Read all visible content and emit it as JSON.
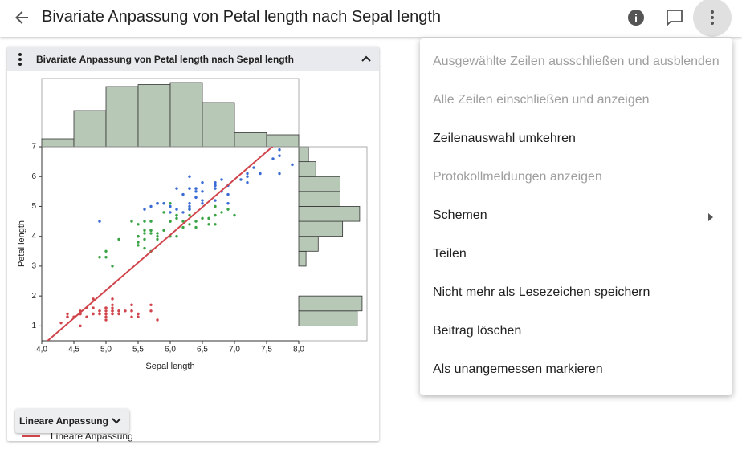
{
  "header": {
    "title": "Bivariate Anpassung von Petal length nach Sepal length"
  },
  "card": {
    "title": "Bivariate Anpassung von Petal length nach Sepal length",
    "button": "Lineare Anpassung"
  },
  "chart_data": {
    "type": "scatter",
    "xlabel": "Sepal length",
    "ylabel": "Petal length",
    "xlim": [
      4,
      8
    ],
    "ylim": [
      0.5,
      7
    ],
    "xticks": [
      {
        "value": 4,
        "label": "4,0"
      },
      {
        "value": 4.5,
        "label": "4,5"
      },
      {
        "value": 5,
        "label": "5,0"
      },
      {
        "value": 5.5,
        "label": "5,5"
      },
      {
        "value": 6,
        "label": "6,0"
      },
      {
        "value": 6.5,
        "label": "6,5"
      },
      {
        "value": 7,
        "label": "7,0"
      },
      {
        "value": 7.5,
        "label": "7,5"
      },
      {
        "value": 8,
        "label": "8,0"
      }
    ],
    "yticks": [
      1,
      2,
      3,
      4,
      5,
      6,
      7
    ],
    "series": [
      {
        "color": "#d0454c",
        "x": [
          5.1,
          4.9,
          4.7,
          4.6,
          5.0,
          5.4,
          4.6,
          5.0,
          4.4,
          4.9,
          5.4,
          4.8,
          4.8,
          4.3,
          5.8,
          5.7,
          5.4,
          5.1,
          5.7,
          5.1,
          5.4,
          5.1,
          4.6,
          5.1,
          4.8,
          5.0,
          5.0,
          5.2,
          5.2,
          4.7,
          4.8,
          5.4,
          5.2,
          5.5,
          4.9,
          5.0,
          5.5,
          4.9,
          4.4,
          5.1,
          5.0,
          4.5,
          4.4,
          5.0,
          5.1,
          4.8,
          5.1,
          4.6,
          5.3,
          5.0
        ],
        "values": [
          1.4,
          1.4,
          1.3,
          1.5,
          1.4,
          1.7,
          1.4,
          1.5,
          1.4,
          1.5,
          1.5,
          1.6,
          1.4,
          1.1,
          1.2,
          1.5,
          1.3,
          1.4,
          1.7,
          1.5,
          1.7,
          1.5,
          1.0,
          1.7,
          1.9,
          1.6,
          1.6,
          1.5,
          1.4,
          1.6,
          1.6,
          1.5,
          1.5,
          1.4,
          1.5,
          1.2,
          1.3,
          1.4,
          1.3,
          1.5,
          1.3,
          1.3,
          1.3,
          1.6,
          1.9,
          1.4,
          1.6,
          1.4,
          1.5,
          1.4
        ]
      },
      {
        "color": "#3aa445",
        "x": [
          7.0,
          6.4,
          6.9,
          5.5,
          6.5,
          5.7,
          6.3,
          4.9,
          6.6,
          5.2,
          5.0,
          5.9,
          6.0,
          6.1,
          5.6,
          6.7,
          5.6,
          5.8,
          6.2,
          5.6,
          5.9,
          6.1,
          6.3,
          6.1,
          6.4,
          6.6,
          6.8,
          6.7,
          6.0,
          5.7,
          5.5,
          5.5,
          5.8,
          6.0,
          5.4,
          6.0,
          6.7,
          6.3,
          5.6,
          5.5,
          5.5,
          6.1,
          5.8,
          5.0,
          5.6,
          5.7,
          5.7,
          6.2,
          5.1,
          5.7
        ],
        "values": [
          4.7,
          4.5,
          4.9,
          4.0,
          4.6,
          4.5,
          4.7,
          3.3,
          4.6,
          3.9,
          3.5,
          4.2,
          4.0,
          4.7,
          3.6,
          4.4,
          4.5,
          4.1,
          4.5,
          3.9,
          4.8,
          4.0,
          4.9,
          4.7,
          4.3,
          4.4,
          4.8,
          5.0,
          4.5,
          3.5,
          3.8,
          3.7,
          3.9,
          5.1,
          4.5,
          4.5,
          4.7,
          4.4,
          4.1,
          4.0,
          4.4,
          4.6,
          4.0,
          3.3,
          4.2,
          4.2,
          4.2,
          4.3,
          3.0,
          4.1
        ]
      },
      {
        "color": "#3a6bd4",
        "x": [
          6.3,
          5.8,
          7.1,
          6.3,
          6.5,
          7.6,
          4.9,
          7.3,
          6.7,
          7.2,
          6.5,
          6.4,
          6.8,
          5.7,
          5.8,
          6.4,
          6.5,
          7.7,
          7.7,
          6.0,
          6.9,
          5.6,
          7.7,
          6.3,
          6.7,
          7.2,
          6.2,
          6.1,
          6.4,
          7.2,
          7.4,
          7.9,
          6.4,
          6.3,
          6.1,
          7.7,
          6.3,
          6.4,
          6.0,
          6.9,
          6.7,
          6.9,
          5.8,
          6.8,
          6.7,
          6.7,
          6.3,
          6.5,
          6.2,
          5.9
        ],
        "values": [
          6.0,
          5.1,
          5.9,
          5.6,
          5.8,
          6.6,
          4.5,
          6.3,
          5.8,
          6.1,
          5.1,
          5.3,
          5.5,
          5.0,
          5.1,
          5.3,
          5.5,
          6.7,
          6.9,
          5.0,
          5.7,
          4.9,
          6.7,
          4.9,
          5.7,
          6.0,
          4.8,
          4.9,
          5.6,
          5.8,
          6.1,
          6.4,
          5.6,
          5.1,
          5.6,
          6.1,
          5.6,
          5.5,
          4.8,
          5.4,
          5.6,
          5.1,
          5.1,
          5.9,
          5.7,
          5.2,
          5.0,
          5.2,
          5.4,
          5.1
        ]
      }
    ],
    "fit": {
      "name": "Lineare Anpassung",
      "intercept": -7.101,
      "slope": 1.858,
      "color": "#d0454c"
    },
    "top_histogram": {
      "bins": [
        4,
        4.5,
        5,
        5.5,
        6,
        6.5,
        7,
        7.5,
        8
      ],
      "counts": [
        4,
        18,
        30,
        31,
        32,
        22,
        7,
        6
      ],
      "count_lim": [
        0,
        34
      ],
      "color": "#b7c8b7"
    },
    "right_histogram": {
      "bins": [
        1,
        1.5,
        2,
        2.5,
        3,
        3.5,
        4,
        4.5,
        5,
        5.5,
        6,
        6.5,
        7
      ],
      "counts": [
        24,
        26,
        0,
        0,
        3,
        8,
        18,
        25,
        17,
        17,
        7,
        4
      ],
      "count_lim": [
        0,
        28
      ],
      "color": "#b7c8b7"
    }
  },
  "menu": {
    "items": [
      {
        "label": "Ausgewählte Zeilen ausschließen und ausblenden",
        "disabled": true
      },
      {
        "label": "Alle Zeilen einschließen und anzeigen",
        "disabled": true
      },
      {
        "label": "Zeilenauswahl umkehren",
        "disabled": false
      },
      {
        "label": "Protokollmeldungen anzeigen",
        "disabled": true
      },
      {
        "label": "Schemen",
        "disabled": false,
        "submenu": true
      },
      {
        "label": "Teilen",
        "disabled": false
      },
      {
        "label": "Nicht mehr als Lesezeichen speichern",
        "disabled": false
      },
      {
        "label": "Beitrag löschen",
        "disabled": false
      },
      {
        "label": "Als unangemessen markieren",
        "disabled": false
      }
    ]
  }
}
